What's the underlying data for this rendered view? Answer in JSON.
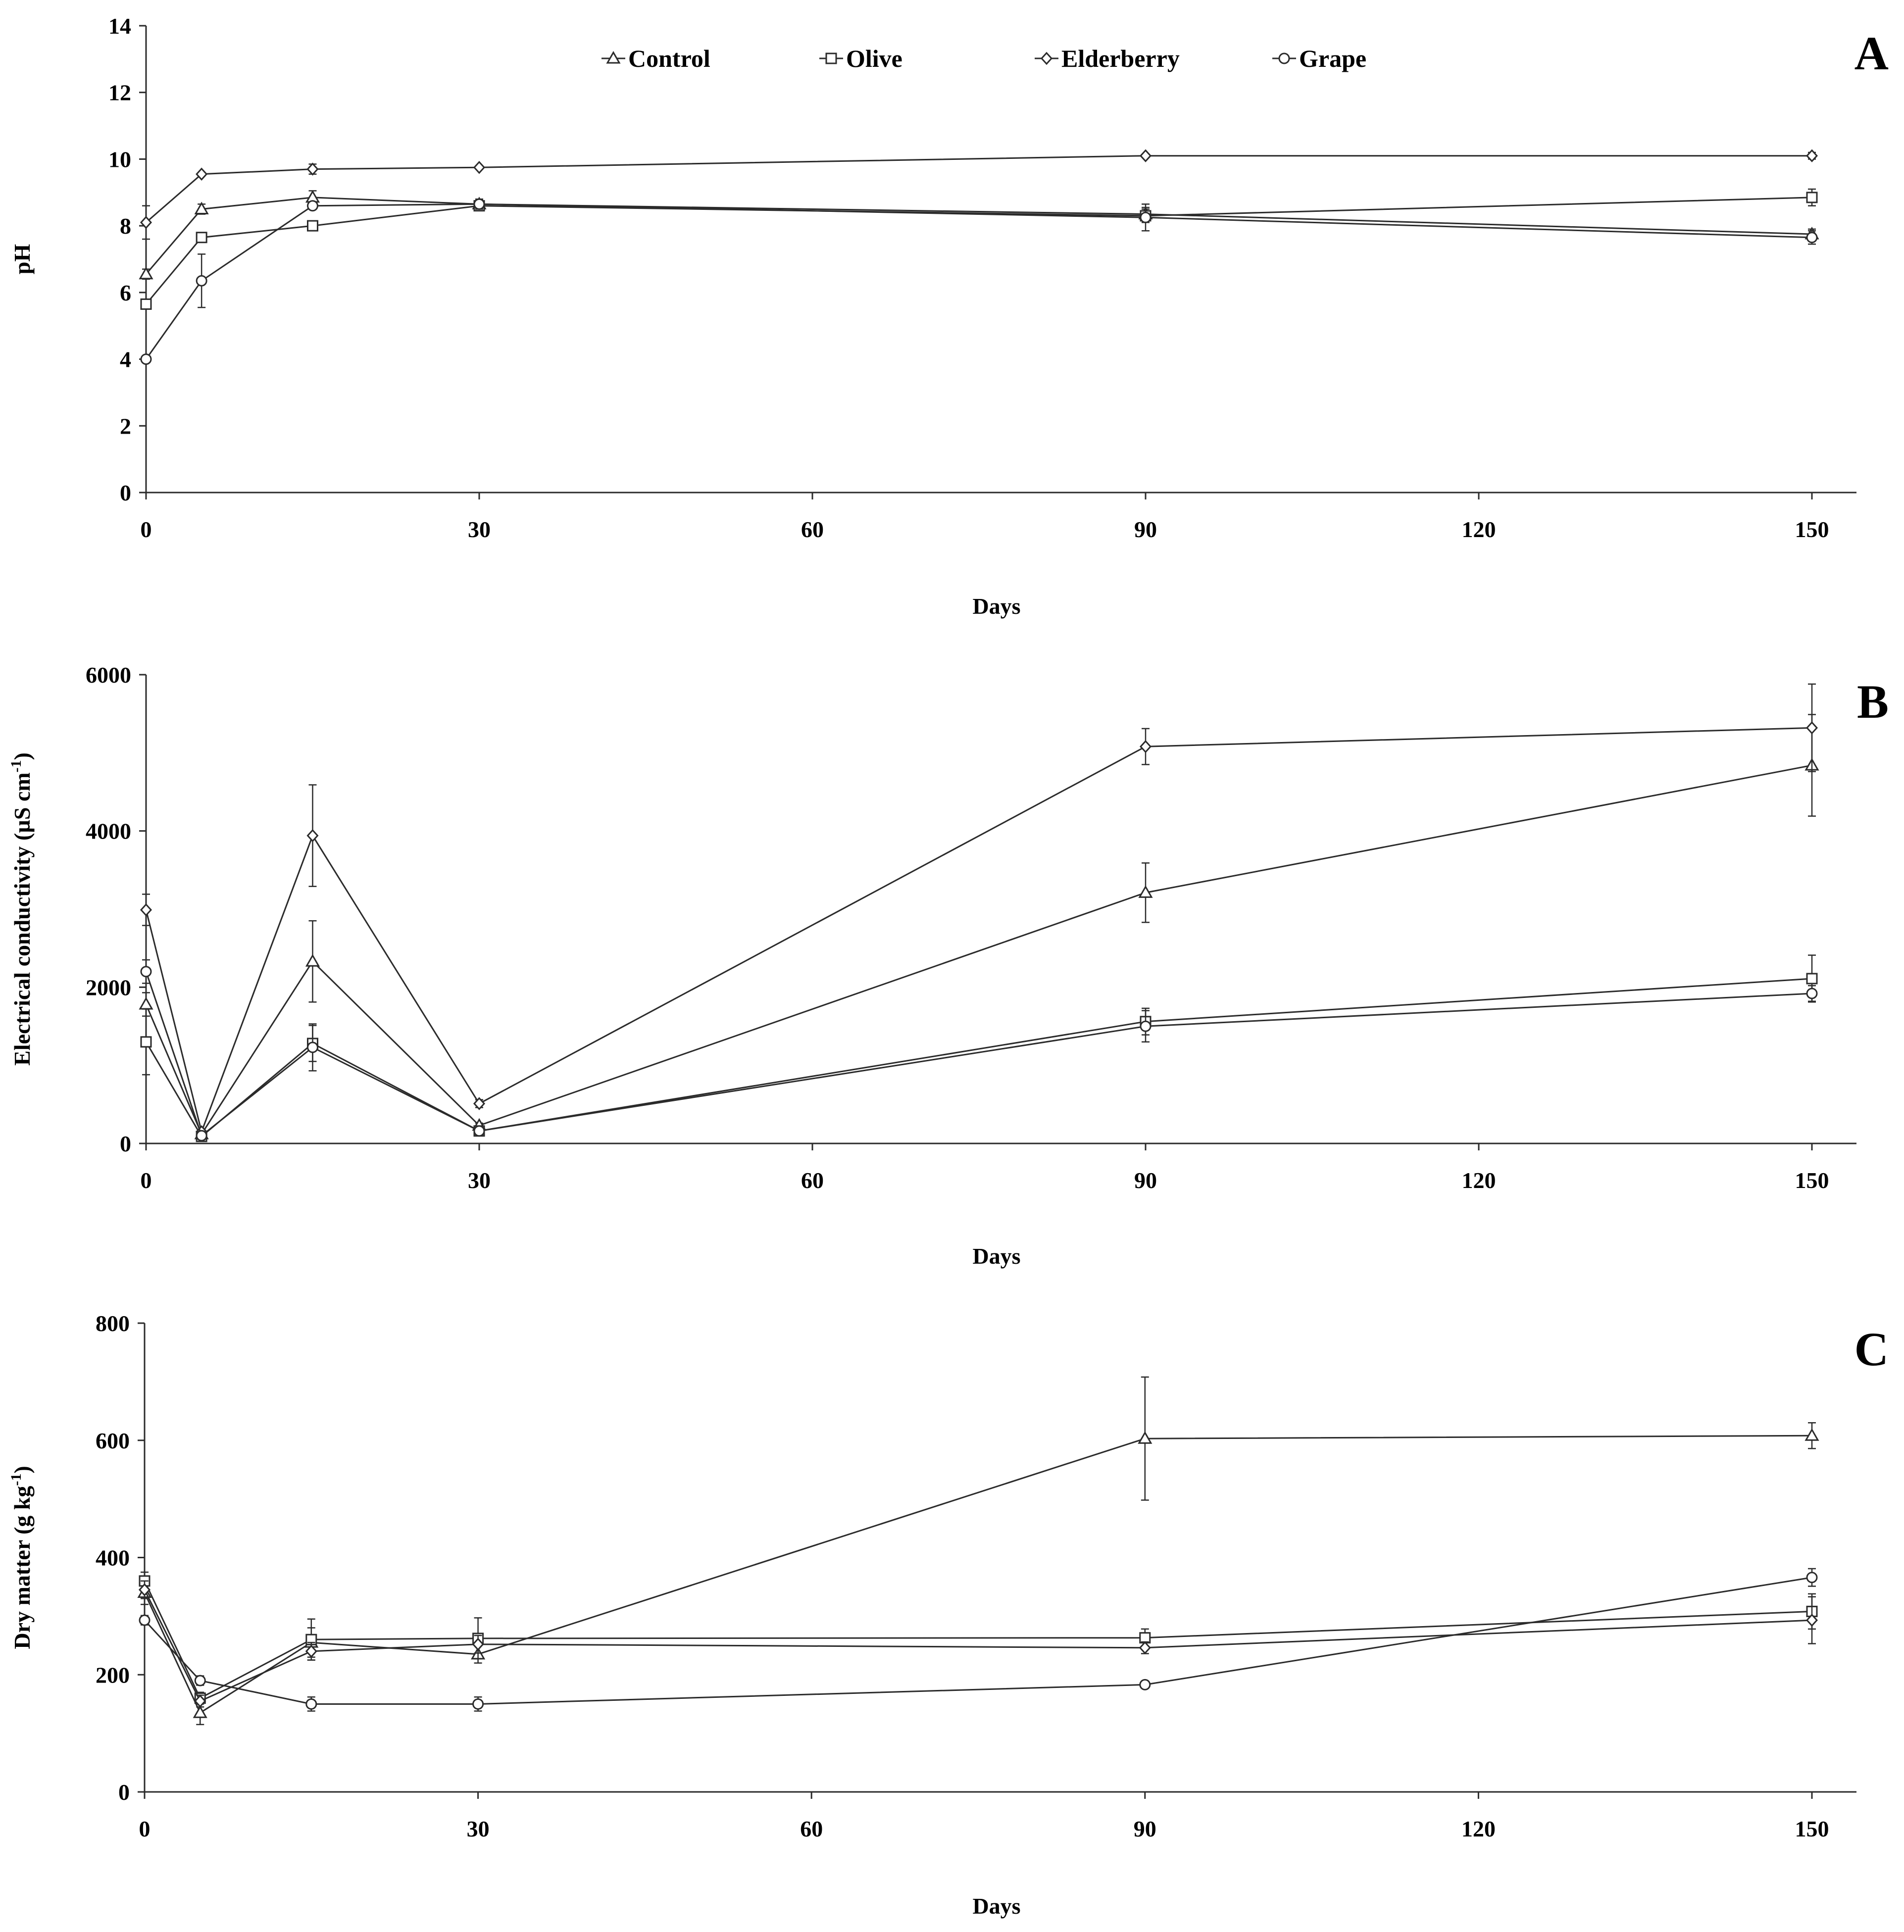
{
  "figure": {
    "legend": {
      "entries": [
        {
          "series": "Control",
          "label": "Control",
          "marker": "triangle"
        },
        {
          "series": "Olive",
          "label": "Olive",
          "marker": "square"
        },
        {
          "series": "Elderberry",
          "label": "Elderberry",
          "marker": "diamond"
        },
        {
          "series": "Grape",
          "label": "Grape",
          "marker": "circle"
        }
      ]
    },
    "line_color": "#2b2b2b"
  },
  "chart_data": [
    {
      "panel": "A",
      "type": "line",
      "title": "",
      "xlabel": "Days",
      "ylabel": "pH",
      "ylabel_sup": "",
      "ylabel_tail": "",
      "xlim": [
        0,
        155
      ],
      "ylim": [
        0,
        14
      ],
      "xticks": [
        0,
        30,
        60,
        90,
        120,
        150
      ],
      "yticks": [
        0,
        2,
        4,
        6,
        8,
        10,
        12,
        14
      ],
      "x": [
        0,
        5,
        15,
        30,
        90,
        150
      ],
      "series": [
        {
          "name": "Control",
          "marker": "triangle",
          "values": [
            6.55,
            8.5,
            8.85,
            8.65,
            8.35,
            7.75
          ],
          "errors": [
            0.15,
            0.15,
            0.2,
            0.1,
            0.2,
            0.15
          ]
        },
        {
          "name": "Olive",
          "marker": "square",
          "values": [
            5.65,
            7.65,
            8.0,
            8.6,
            8.3,
            8.85
          ],
          "errors": [
            0.1,
            0.1,
            0.1,
            0.1,
            0.2,
            0.25
          ]
        },
        {
          "name": "Elderberry",
          "marker": "diamond",
          "values": [
            8.1,
            9.55,
            9.7,
            9.75,
            10.1,
            10.1
          ],
          "errors": [
            0.5,
            0.05,
            0.15,
            0.05,
            0.05,
            0.1
          ]
        },
        {
          "name": "Grape",
          "marker": "circle",
          "values": [
            4.0,
            6.35,
            8.6,
            8.65,
            8.25,
            7.65
          ],
          "errors": [
            0.05,
            0.8,
            0.1,
            0.15,
            0.4,
            0.2
          ]
        }
      ]
    },
    {
      "panel": "B",
      "type": "line",
      "title": "",
      "xlabel": "Days",
      "ylabel": "Electrical conductivity (µS cm",
      "ylabel_sup": "-1",
      "ylabel_tail": ")",
      "xlim": [
        0,
        155
      ],
      "ylim": [
        0,
        6000
      ],
      "xticks": [
        0,
        30,
        60,
        90,
        120,
        150
      ],
      "yticks": [
        0,
        2000,
        4000,
        6000
      ],
      "x": [
        0,
        5,
        15,
        30,
        90,
        150
      ],
      "series": [
        {
          "name": "Control",
          "marker": "triangle",
          "values": [
            1780,
            120,
            2330,
            230,
            3210,
            4840
          ],
          "errors": [
            150,
            30,
            520,
            30,
            380,
            650
          ]
        },
        {
          "name": "Olive",
          "marker": "square",
          "values": [
            1300,
            90,
            1280,
            160,
            1560,
            2110
          ],
          "errors": [
            420,
            20,
            230,
            20,
            170,
            300
          ]
        },
        {
          "name": "Elderberry",
          "marker": "diamond",
          "values": [
            2990,
            150,
            3940,
            510,
            5080,
            5320
          ],
          "errors": [
            200,
            30,
            650,
            50,
            230,
            560
          ]
        },
        {
          "name": "Grape",
          "marker": "circle",
          "values": [
            2200,
            100,
            1230,
            160,
            1500,
            1920
          ],
          "errors": [
            150,
            20,
            300,
            20,
            200,
            100
          ]
        }
      ]
    },
    {
      "panel": "C",
      "type": "line",
      "title": "",
      "xlabel": "Days",
      "ylabel": "Dry matter (g kg",
      "ylabel_sup": "-1",
      "ylabel_tail": ")",
      "xlim": [
        0,
        155
      ],
      "ylim": [
        0,
        800
      ],
      "xticks": [
        0,
        30,
        60,
        90,
        120,
        150
      ],
      "yticks": [
        0,
        200,
        400,
        600,
        800
      ],
      "x": [
        0,
        5,
        15,
        30,
        90,
        150
      ],
      "series": [
        {
          "name": "Control",
          "marker": "triangle",
          "values": [
            340,
            135,
            255,
            235,
            603,
            608
          ],
          "errors": [
            20,
            20,
            25,
            15,
            105,
            22
          ]
        },
        {
          "name": "Olive",
          "marker": "square",
          "values": [
            360,
            160,
            260,
            262,
            263,
            308
          ],
          "errors": [
            15,
            10,
            35,
            35,
            15,
            30
          ]
        },
        {
          "name": "Elderberry",
          "marker": "diamond",
          "values": [
            345,
            155,
            240,
            252,
            246,
            293
          ],
          "errors": [
            15,
            10,
            15,
            15,
            10,
            40
          ]
        },
        {
          "name": "Grape",
          "marker": "circle",
          "values": [
            293,
            190,
            150,
            150,
            183,
            366
          ],
          "errors": [
            8,
            8,
            12,
            12,
            6,
            15
          ]
        }
      ]
    }
  ]
}
